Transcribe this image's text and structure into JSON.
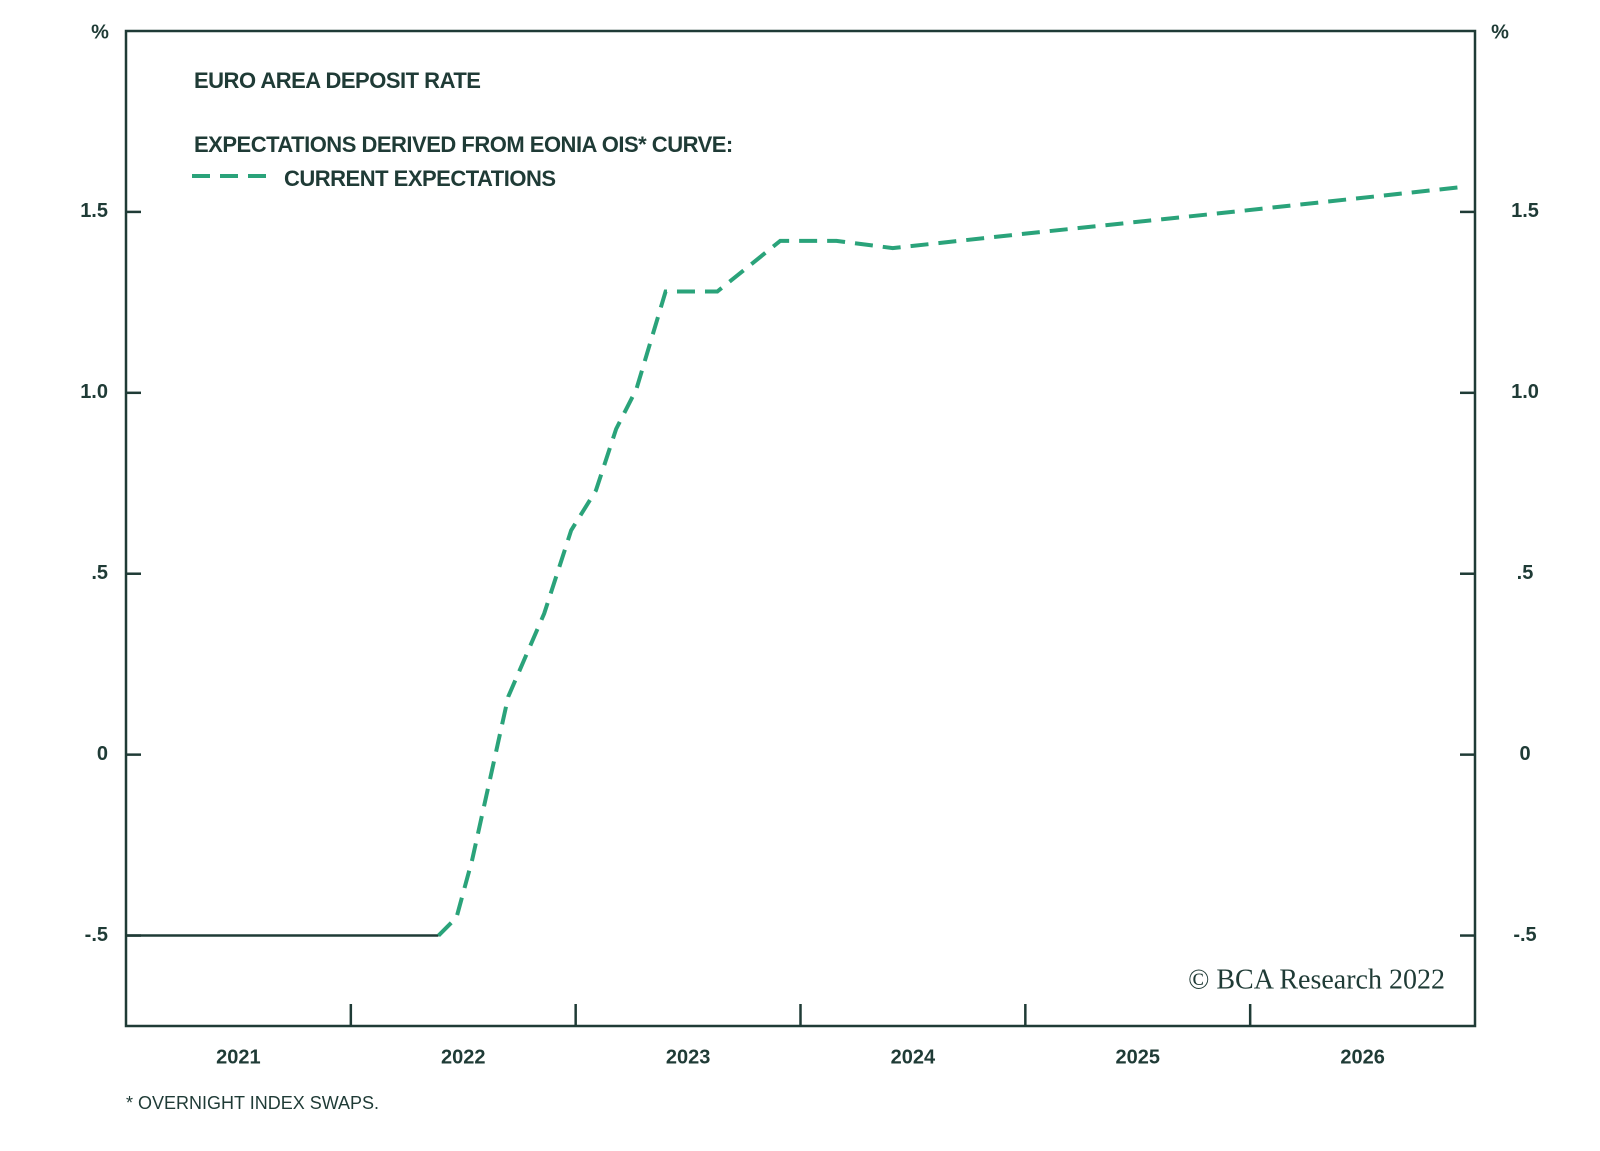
{
  "chart_data": {
    "type": "line",
    "y_unit": "%",
    "legend_heading": "EXPECTATIONS DERIVED FROM EONIA OIS* CURVE:",
    "categories": [
      "2021",
      "2022",
      "2023",
      "2024",
      "2025",
      "2026"
    ],
    "xlim": [
      2021,
      2027
    ],
    "ylim": [
      -0.75,
      2.0
    ],
    "yticks": [
      {
        "value": -0.5,
        "label": "-.5"
      },
      0,
      {
        "value": 0.5,
        "label": ".5"
      },
      {
        "value": 1.0,
        "label": "1.0"
      },
      1.5
    ],
    "y2lim": [
      -0.75,
      2.0
    ],
    "y2ticks": [
      {
        "value": -0.5,
        "label": "-.5"
      },
      0,
      {
        "value": 0.5,
        "label": ".5"
      },
      {
        "value": 1.0,
        "label": "1.0"
      },
      1.5
    ],
    "grid": false,
    "series": [
      {
        "name": "EURO AREA DEPOSIT RATE",
        "color": "#1f3b36",
        "dashed": false,
        "x": [
          2021,
          2022.39
        ],
        "values": [
          -0.5,
          -0.5
        ]
      },
      {
        "name": "CURRENT EXPECTATIONS",
        "color": "#2aa37a",
        "dashed": true,
        "x": [
          2022.39,
          2022.47,
          2022.54,
          2022.7,
          2022.86,
          2022.98,
          2023.09,
          2023.18,
          2023.27,
          2023.4,
          2023.63,
          2023.91,
          2024.16,
          2024.41,
          2025.0,
          2025.92,
          2026.96
        ],
        "values": [
          -0.5,
          -0.45,
          -0.29,
          0.16,
          0.39,
          0.62,
          0.73,
          0.9,
          1.01,
          1.28,
          1.28,
          1.42,
          1.42,
          1.4,
          1.44,
          1.5,
          1.57
        ]
      }
    ],
    "annotations": [
      "© BCA Research 2022"
    ],
    "footnote": "* OVERNIGHT INDEX SWAPS."
  }
}
